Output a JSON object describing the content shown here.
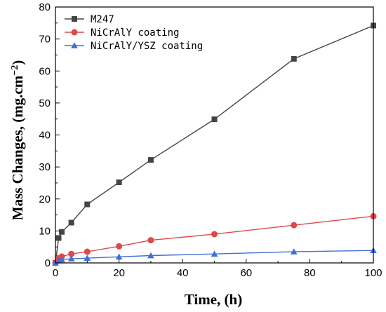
{
  "chart_data": {
    "type": "line",
    "xlabel": "Time, (h)",
    "ylabel": "Mass Changes, (mg.cm",
    "ylabel_sup": "−2",
    "ylabel_close": ")",
    "xlim": [
      0,
      100
    ],
    "ylim": [
      0,
      80
    ],
    "xticks": [
      0,
      20,
      40,
      60,
      80,
      100
    ],
    "yticks": [
      0,
      10,
      20,
      30,
      40,
      50,
      60,
      70,
      80
    ],
    "grid": false,
    "legend_position": "top-left",
    "series": [
      {
        "name": "M247",
        "color": "#444444",
        "marker": "square",
        "x": [
          0,
          1,
          2,
          5,
          10,
          20,
          30,
          50,
          75,
          100
        ],
        "y": [
          0,
          7.8,
          9.7,
          12.6,
          18.3,
          25.2,
          32.2,
          44.9,
          63.8,
          74.2
        ]
      },
      {
        "name": "NiCrAlY coating",
        "color": "#e04848",
        "marker": "circle",
        "x": [
          0,
          1,
          2,
          5,
          10,
          20,
          30,
          50,
          75,
          100
        ],
        "y": [
          0,
          1.5,
          2.0,
          2.8,
          3.5,
          5.2,
          7.1,
          9.0,
          11.8,
          14.6
        ]
      },
      {
        "name": "NiCrAlY/YSZ coating",
        "color": "#3f6fd8",
        "marker": "triangle",
        "x": [
          0,
          1,
          2,
          5,
          10,
          20,
          30,
          50,
          75,
          100
        ],
        "y": [
          0,
          0.7,
          1.0,
          1.3,
          1.5,
          1.9,
          2.3,
          2.8,
          3.5,
          3.9
        ]
      }
    ]
  }
}
